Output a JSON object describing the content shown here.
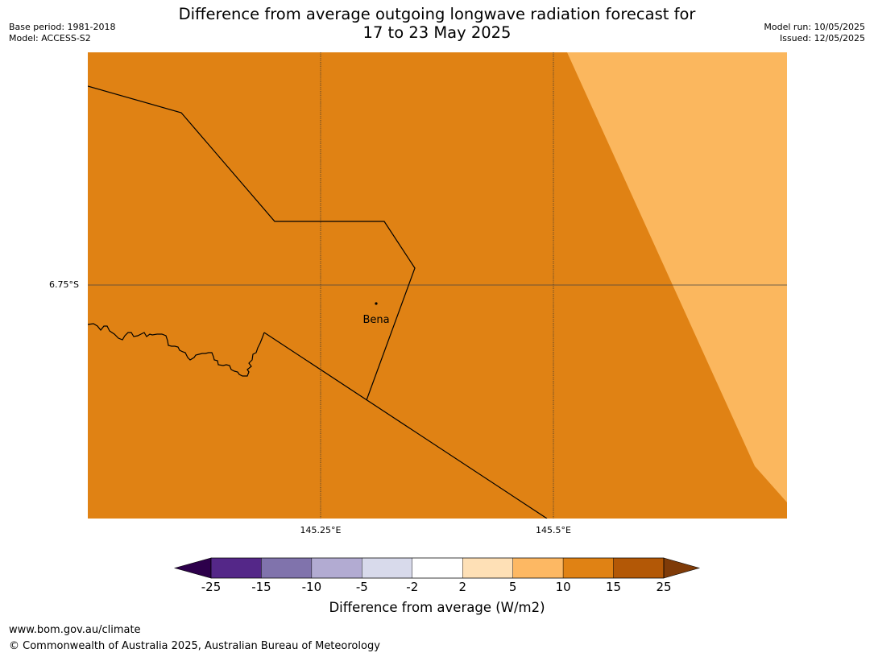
{
  "title": {
    "line1": "Difference from average outgoing longwave radiation forecast for",
    "line2": "17 to 23 May 2025"
  },
  "meta_left": {
    "base_period": "Base period: 1981-2018",
    "model": "Model: ACCESS-S2"
  },
  "meta_right": {
    "model_run": "Model run: 10/05/2025",
    "issued": "Issued: 12/05/2025"
  },
  "map": {
    "lat_labels": [
      "6.75°S"
    ],
    "lon_labels": [
      "145.25°E",
      "145.5°E"
    ],
    "place": "Bena",
    "colors": {
      "dominant": "#e08214",
      "secondary": "#fbb75e",
      "border": "#000000",
      "gridline": "#444444"
    }
  },
  "colorbar": {
    "title": "Difference from average (W/m2)",
    "ticks": [
      "-25",
      "-15",
      "-10",
      "-5",
      "-2",
      "2",
      "5",
      "10",
      "15",
      "25"
    ],
    "colors": [
      "#542788",
      "#8073ac",
      "#b2abd2",
      "#d8daeb",
      "#ffffff",
      "#fee0b6",
      "#fdb863",
      "#e08214",
      "#b35806"
    ],
    "under_color": "#2d004b",
    "over_color": "#7f3b08"
  },
  "footer": {
    "url": "www.bom.gov.au/climate",
    "copyright": "© Commonwealth of Australia 2025, Australian Bureau of Meteorology"
  }
}
